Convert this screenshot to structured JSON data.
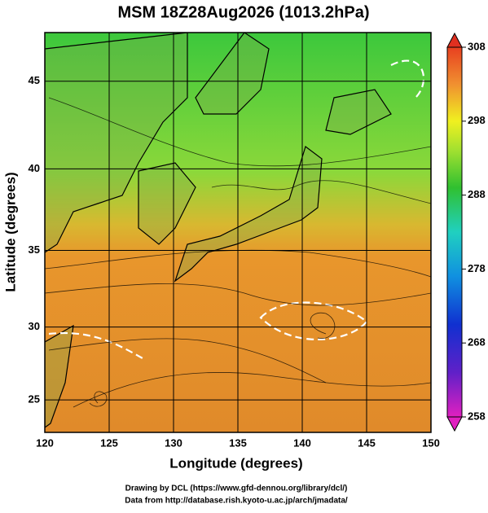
{
  "chart_data": {
    "type": "map",
    "title": "MSM 18Z28Aug2026 (1013.2hPa)",
    "x_label": "Longitude (degrees)",
    "y_label": "Latitude  (degrees)",
    "projection": "mercator",
    "xlim": [
      120,
      150
    ],
    "xticks": [
      120,
      125,
      130,
      135,
      140,
      145,
      150
    ],
    "ylim": [
      22.7,
      47.6
    ],
    "yticks": [
      25,
      30,
      35,
      40,
      45
    ],
    "colorbar": {
      "lim": [
        258,
        308
      ],
      "ticks": [
        258,
        268,
        278,
        288,
        298,
        308
      ]
    },
    "credits": [
      "Drawing by DCL (https://www.gfd-dennou.org/library/dcl/)",
      "Data from http://database.rish.kyoto-u.ac.jp/arch/jmadata/"
    ]
  }
}
